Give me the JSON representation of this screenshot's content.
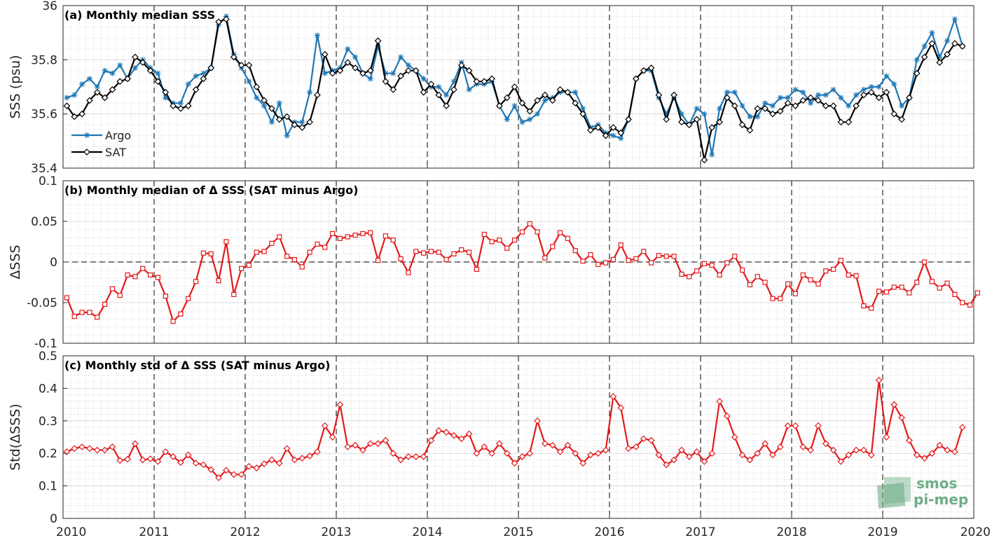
{
  "colors": {
    "argo": "#1f77b4",
    "sat": "#000000",
    "delta": "#e31a1c",
    "watermark": "#6fae86"
  },
  "watermark": {
    "line1": "smos",
    "line2": "pi-mep"
  },
  "chart_data": [
    {
      "type": "line",
      "title": "(a) Monthly median SSS",
      "xlabel": "",
      "ylabel": "SSS (psu)",
      "xlim": [
        2010,
        2020
      ],
      "ylim": [
        35.4,
        36
      ],
      "yticks": [
        35.4,
        35.6,
        35.8,
        36
      ],
      "ytick_labels": [
        "35.4",
        "35.6",
        "35.8",
        "36"
      ],
      "xticks": [
        2010,
        2011,
        2012,
        2013,
        2014,
        2015,
        2016,
        2017,
        2018,
        2019,
        2020
      ],
      "xtick_labels": [
        "2010",
        "2011",
        "2012",
        "2013",
        "2014",
        "2015",
        "2016",
        "2017",
        "2018",
        "2019",
        "2020"
      ],
      "grid": true,
      "legend_position": "bottom-left",
      "series": [
        {
          "name": "Argo",
          "marker": "star",
          "values": [
            35.66,
            35.67,
            35.71,
            35.73,
            35.7,
            35.76,
            35.75,
            35.78,
            35.73,
            35.77,
            35.8,
            35.77,
            35.75,
            35.66,
            35.64,
            35.64,
            35.71,
            35.74,
            35.75,
            35.77,
            35.93,
            35.96,
            35.82,
            35.77,
            35.72,
            35.66,
            35.63,
            35.57,
            35.64,
            35.52,
            35.57,
            35.57,
            35.68,
            35.89,
            35.75,
            35.76,
            35.77,
            35.84,
            35.81,
            35.75,
            35.73,
            35.85,
            35.75,
            35.75,
            35.81,
            35.78,
            35.76,
            35.73,
            35.7,
            35.7,
            35.67,
            35.72,
            35.79,
            35.69,
            35.71,
            35.71,
            35.72,
            35.63,
            35.58,
            35.63,
            35.57,
            35.58,
            35.6,
            35.65,
            35.66,
            35.68,
            35.68,
            35.68,
            35.62,
            35.55,
            35.56,
            35.53,
            35.52,
            35.51,
            35.58,
            35.73,
            35.76,
            35.76,
            35.66,
            35.6,
            35.66,
            35.6,
            35.56,
            35.62,
            35.6,
            35.45,
            35.62,
            35.68,
            35.68,
            35.63,
            35.59,
            35.59,
            35.64,
            35.63,
            35.66,
            35.66,
            35.69,
            35.68,
            35.64,
            35.67,
            35.67,
            35.69,
            35.66,
            35.63,
            35.67,
            35.69,
            35.7,
            35.7,
            35.74,
            35.71,
            35.63,
            35.66,
            35.8,
            35.85,
            35.9,
            35.81,
            35.87,
            35.95,
            35.85
          ]
        },
        {
          "name": "SAT",
          "marker": "diamond",
          "values": [
            35.63,
            35.59,
            35.6,
            35.65,
            35.68,
            35.66,
            35.69,
            35.72,
            35.73,
            35.81,
            35.79,
            35.76,
            35.72,
            35.68,
            35.63,
            35.62,
            35.63,
            35.69,
            35.73,
            35.77,
            35.94,
            35.95,
            35.81,
            35.78,
            35.78,
            35.7,
            35.65,
            35.62,
            35.58,
            35.59,
            35.56,
            35.55,
            35.57,
            35.67,
            35.82,
            35.75,
            35.76,
            35.79,
            35.77,
            35.75,
            35.76,
            35.87,
            35.72,
            35.69,
            35.74,
            35.76,
            35.76,
            35.68,
            35.71,
            35.67,
            35.63,
            35.69,
            35.78,
            35.76,
            35.72,
            35.72,
            35.73,
            35.63,
            35.66,
            35.7,
            35.64,
            35.61,
            35.65,
            35.67,
            35.65,
            35.69,
            35.68,
            35.64,
            35.6,
            35.54,
            35.55,
            35.52,
            35.55,
            35.53,
            35.58,
            35.73,
            35.76,
            35.77,
            35.67,
            35.58,
            35.67,
            35.57,
            35.56,
            35.58,
            35.43,
            35.55,
            35.57,
            35.66,
            35.63,
            35.56,
            35.54,
            35.62,
            35.62,
            35.6,
            35.61,
            35.64,
            35.63,
            35.65,
            35.66,
            35.65,
            35.63,
            35.63,
            35.57,
            35.57,
            35.63,
            35.67,
            35.68,
            35.66,
            35.68,
            35.6,
            35.58,
            35.66,
            35.75,
            35.81,
            35.86,
            35.79,
            35.82,
            35.86,
            35.85
          ]
        }
      ]
    },
    {
      "type": "line",
      "title": "(b) Monthly median of Δ SSS (SAT minus Argo)",
      "xlabel": "",
      "ylabel": "ΔSSS",
      "xlim": [
        2010,
        2020
      ],
      "ylim": [
        -0.1,
        0.1
      ],
      "yticks": [
        -0.1,
        -0.05,
        0,
        0.05,
        0.1
      ],
      "ytick_labels": [
        "-0.1",
        "-0.05",
        "0",
        "0.05",
        "0.1"
      ],
      "xticks": [
        2010,
        2011,
        2012,
        2013,
        2014,
        2015,
        2016,
        2017,
        2018,
        2019,
        2020
      ],
      "grid": true,
      "reference_line": 0,
      "series": [
        {
          "marker": "square",
          "values": [
            -0.044,
            -0.067,
            -0.062,
            -0.062,
            -0.068,
            -0.052,
            -0.033,
            -0.041,
            -0.016,
            -0.018,
            -0.008,
            -0.016,
            -0.019,
            -0.042,
            -0.073,
            -0.064,
            -0.045,
            -0.024,
            0.011,
            0.01,
            -0.023,
            0.025,
            -0.04,
            -0.008,
            -0.004,
            0.012,
            0.013,
            0.023,
            0.031,
            0.007,
            0.003,
            -0.006,
            0.012,
            0.022,
            0.018,
            0.035,
            0.029,
            0.031,
            0.033,
            0.035,
            0.036,
            0.002,
            0.032,
            0.027,
            0.004,
            -0.013,
            0.013,
            0.011,
            0.013,
            0.012,
            0.003,
            0.01,
            0.015,
            0.012,
            -0.009,
            0.034,
            0.025,
            0.027,
            0.017,
            0.027,
            0.037,
            0.047,
            0.037,
            0.005,
            0.019,
            0.036,
            0.029,
            0.014,
            0.001,
            0.009,
            -0.003,
            -0.001,
            0.003,
            0.021,
            0.002,
            0.004,
            0.013,
            -0.001,
            0.008,
            0.007,
            0.007,
            -0.015,
            -0.018,
            -0.011,
            -0.002,
            -0.004,
            -0.016,
            -0.001,
            0.007,
            -0.01,
            -0.028,
            -0.018,
            -0.025,
            -0.045,
            -0.045,
            -0.027,
            -0.039,
            -0.016,
            -0.022,
            -0.027,
            -0.011,
            -0.009,
            0.002,
            -0.016,
            -0.017,
            -0.054,
            -0.057,
            -0.036,
            -0.037,
            -0.031,
            -0.031,
            -0.038,
            -0.025,
            0,
            -0.024,
            -0.032,
            -0.026,
            -0.04,
            -0.05,
            -0.053,
            -0.038
          ]
        }
      ]
    },
    {
      "type": "line",
      "title": "(c) Monthly std of Δ SSS (SAT minus Argo)",
      "xlabel": "",
      "ylabel": "Std(ΔSSS)",
      "xlim": [
        2010,
        2020
      ],
      "ylim": [
        0,
        0.5
      ],
      "yticks": [
        0,
        0.1,
        0.2,
        0.3,
        0.4,
        0.5
      ],
      "ytick_labels": [
        "0",
        "0.1",
        "0.2",
        "0.3",
        "0.4",
        "0.5"
      ],
      "xticks": [
        2010,
        2011,
        2012,
        2013,
        2014,
        2015,
        2016,
        2017,
        2018,
        2019,
        2020
      ],
      "xtick_labels": [
        "2010",
        "2011",
        "2012",
        "2013",
        "2014",
        "2015",
        "2016",
        "2017",
        "2018",
        "2019",
        "2020"
      ],
      "grid": true,
      "series": [
        {
          "marker": "diamond",
          "values": [
            0.205,
            0.215,
            0.22,
            0.215,
            0.21,
            0.21,
            0.22,
            0.178,
            0.182,
            0.23,
            0.18,
            0.183,
            0.175,
            0.205,
            0.19,
            0.172,
            0.195,
            0.17,
            0.165,
            0.15,
            0.125,
            0.148,
            0.135,
            0.135,
            0.16,
            0.155,
            0.168,
            0.18,
            0.17,
            0.215,
            0.18,
            0.185,
            0.192,
            0.205,
            0.285,
            0.25,
            0.35,
            0.22,
            0.225,
            0.21,
            0.23,
            0.23,
            0.24,
            0.2,
            0.18,
            0.19,
            0.19,
            0.19,
            0.24,
            0.27,
            0.265,
            0.255,
            0.245,
            0.26,
            0.2,
            0.22,
            0.2,
            0.23,
            0.2,
            0.17,
            0.19,
            0.2,
            0.3,
            0.23,
            0.225,
            0.205,
            0.225,
            0.2,
            0.17,
            0.195,
            0.2,
            0.21,
            0.375,
            0.34,
            0.215,
            0.22,
            0.245,
            0.24,
            0.195,
            0.165,
            0.18,
            0.21,
            0.19,
            0.205,
            0.175,
            0.2,
            0.36,
            0.315,
            0.25,
            0.195,
            0.18,
            0.2,
            0.23,
            0.195,
            0.22,
            0.285,
            0.285,
            0.22,
            0.21,
            0.285,
            0.23,
            0.21,
            0.175,
            0.195,
            0.21,
            0.21,
            0.195,
            0.425,
            0.25,
            0.35,
            0.31,
            0.24,
            0.195,
            0.185,
            0.2,
            0.225,
            0.21,
            0.205,
            0.28
          ]
        }
      ]
    }
  ]
}
